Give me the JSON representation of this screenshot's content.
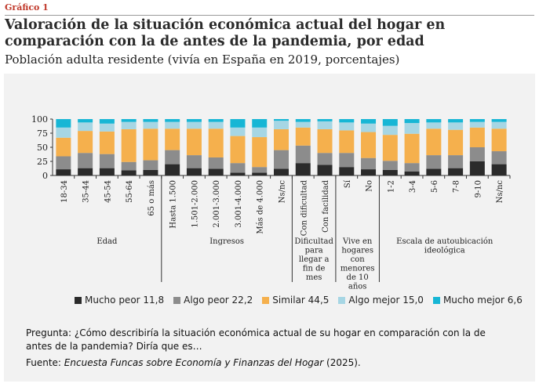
{
  "header": {
    "label": "Gráfico 1",
    "title": "Valoración de la situación económica actual del hogar en comparación con la de antes de la pandemia, por edad",
    "subtitle": "Población adulta residente (vivía en España en 2019, porcentajes)"
  },
  "notes": {
    "question": "Pregunta: ¿Cómo describiría la situación económica actual de su hogar en comparación con la de antes de la pandemia? Diría que es…",
    "source_prefix": "Fuente: ",
    "source_title": "Encuesta Funcas sobre Economía y Finanzas del Hogar",
    "source_suffix": " (2025)."
  },
  "chart_data": {
    "type": "bar",
    "stacked": true,
    "ylim": [
      0,
      100
    ],
    "yticks": [
      0,
      25,
      50,
      75,
      100
    ],
    "categories": [
      "18-34",
      "35-44",
      "45-54",
      "55-64",
      "65 o más",
      "Hasta 1.500",
      "1.501-2.000",
      "2.001-3.000",
      "3.001-4.000",
      "Más de 4.000",
      "Ns/nc",
      "Con dificultad",
      "Con facilidad",
      "Sí",
      "No",
      "1-2",
      "3-4",
      "5-6",
      "7-8",
      "9-10",
      "Ns/nc"
    ],
    "groups": [
      {
        "label": "Edad",
        "count": 5
      },
      {
        "label": "Ingresos",
        "count": 6
      },
      {
        "label": "Dificultad para llegar a fin de mes",
        "count": 2
      },
      {
        "label": "Vive en hogares con menores de 10 años",
        "count": 2
      },
      {
        "label": "Escala de autoubicación ideológica",
        "count": 6
      }
    ],
    "series": [
      {
        "name": "Mucho peor 11,8",
        "color": "#2b2b2b",
        "values": [
          11,
          13,
          13,
          9,
          10,
          20,
          13,
          12,
          5,
          5,
          12,
          22,
          19,
          15,
          11,
          10,
          7,
          12,
          13,
          25,
          20
        ]
      },
      {
        "name": "Algo peor 22,2",
        "color": "#8c8c8c",
        "values": [
          23,
          27,
          25,
          15,
          17,
          25,
          23,
          20,
          17,
          10,
          33,
          31,
          21,
          25,
          20,
          16,
          15,
          24,
          23,
          25,
          23
        ]
      },
      {
        "name": "Similar 44,5",
        "color": "#f5b04d",
        "values": [
          33,
          39,
          40,
          58,
          56,
          38,
          47,
          51,
          48,
          53,
          37,
          32,
          42,
          40,
          46,
          46,
          52,
          47,
          45,
          35,
          40
        ]
      },
      {
        "name": "Algo mejor 15,0",
        "color": "#a6d6e4",
        "values": [
          18,
          15,
          14,
          13,
          12,
          12,
          12,
          12,
          15,
          17,
          15,
          10,
          14,
          14,
          15,
          16,
          19,
          11,
          13,
          10,
          12
        ]
      },
      {
        "name": "Mucho mejor 6,6",
        "color": "#17b6d5",
        "values": [
          15,
          6,
          8,
          5,
          5,
          5,
          5,
          5,
          15,
          15,
          3,
          5,
          4,
          6,
          8,
          12,
          7,
          6,
          6,
          5,
          5
        ]
      }
    ]
  }
}
